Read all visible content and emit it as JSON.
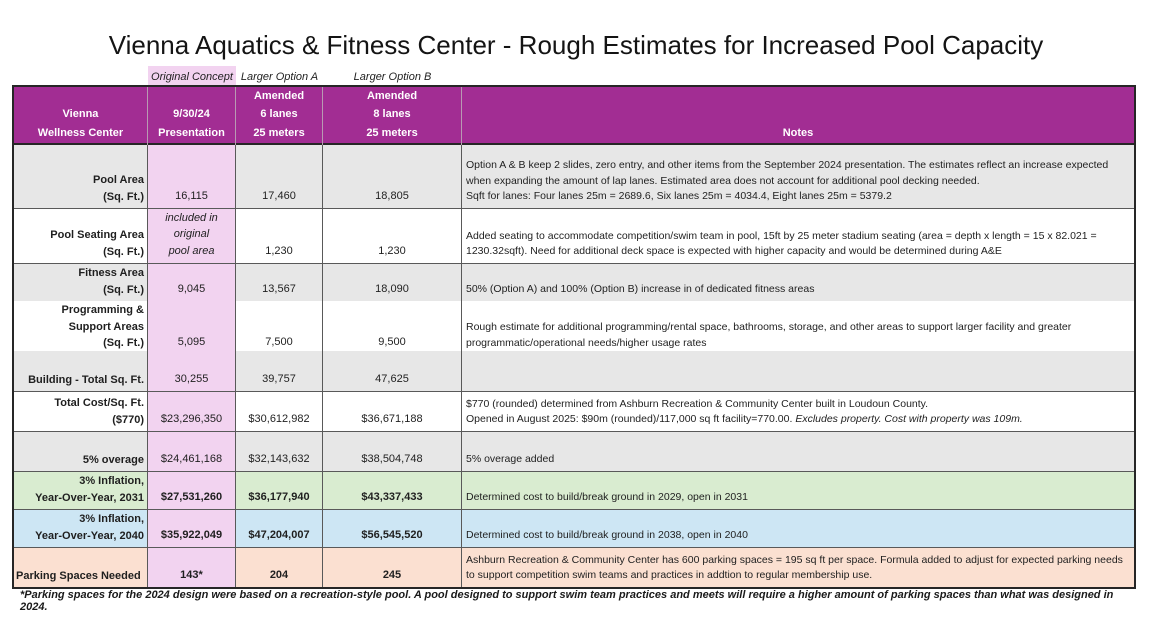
{
  "title": "Vienna Aquatics & Fitness Center - Rough Estimates for Increased Pool Capacity",
  "mini_headers": [
    "Original Concept",
    "Larger Option A",
    "Larger Option B"
  ],
  "column_headers": [
    "Vienna\nWellness Center",
    "9/30/24\nPresentation",
    "Amended\n6 lanes\n25 meters",
    "Amended\n8 lanes\n25 meters",
    "Notes"
  ],
  "rows": [
    {
      "label": "Pool Area\n(Sq. Ft.)",
      "original": "16,115",
      "option_a": "17,460",
      "option_b": "18,805",
      "note": "Option A & B keep 2 slides, zero entry, and other items from the September 2024 presentation. The estimates reflect an increase expected when expanding the amount of lap lanes. Estimated area does not account for additional pool decking needed.\nSqft for lanes: Four lanes 25m = 2689.6, Six lanes 25m = 4034.4, Eight lanes 25m = 5379.2",
      "style": "gray"
    },
    {
      "label": "Pool Seating Area\n(Sq. Ft.)",
      "original": "included in original\npool area",
      "option_a": "1,230",
      "option_b": "1,230",
      "note": "Added seating to accommodate competition/swim team in pool, 15ft by 25 meter stadium seating (area = depth x length = 15 x 82.021 = 1230.32sqft). Need for additional deck space is expected with higher capacity and would be determined during A&E",
      "style": "white"
    },
    {
      "label": "Fitness Area\n(Sq. Ft.)",
      "original": "9,045",
      "option_a": "13,567",
      "option_b": "18,090",
      "note": "50% (Option A) and 100% (Option B) increase in of dedicated fitness areas",
      "style": "gray"
    },
    {
      "label": "Programming &\nSupport Areas\n(Sq. Ft.)",
      "original": "5,095",
      "option_a": "7,500",
      "option_b": "9,500",
      "note": "Rough estimate for additional programming/rental space, bathrooms, storage, and other areas  to support larger facility and greater programmatic/operational needs/higher usage rates",
      "style": "white"
    },
    {
      "label": "Building - Total Sq. Ft.",
      "original": "30,255",
      "option_a": "39,757",
      "option_b": "47,625",
      "note": "",
      "style": "gray"
    },
    {
      "label": "Total Cost/Sq. Ft.\n($770)",
      "original": "$23,296,350",
      "option_a": "$30,612,982",
      "option_b": "$36,671,188",
      "note": "$770 (rounded) determined from Ashburn Recreation & Community Center built in Loudoun County.\nOpened in August 2025: $90m (rounded)/117,000 sq ft facility=770.00. ",
      "note_italic": "Excludes property. Cost with property was 109m.",
      "style": "white"
    },
    {
      "label": "5% overage",
      "original": "$24,461,168",
      "option_a": "$32,143,632",
      "option_b": "$38,504,748",
      "note": "5% overage added",
      "style": "gray"
    },
    {
      "label": "3% Inflation,\nYear-Over-Year, 2031",
      "original": "$27,531,260",
      "option_a": "$36,177,940",
      "option_b": "$43,337,433",
      "note": "Determined cost to build/break ground in 2029, open in 2031",
      "style": "green"
    },
    {
      "label": "3% Inflation,\nYear-Over-Year, 2040",
      "original": "$35,922,049",
      "option_a": "$47,204,007",
      "option_b": "$56,545,520",
      "note": "Determined cost to build/break ground in 2038, open in 2040",
      "style": "blue"
    },
    {
      "label": "Parking Spaces Needed",
      "original": "143*",
      "option_a": "204",
      "option_b": "245",
      "note": "Ashburn Recreation & Community Center has 600 parking spaces = 195 sq ft per space. Formula added to adjust for expected parking needs to support competition swim teams and practices in addtion to regular membership use.",
      "style": "peach"
    }
  ],
  "footnote": "*Parking spaces for the 2024 design were based on a recreation-style pool. A pool designed to support swim team practices and meets will require a higher amount of parking spaces than what was designed in 2024.",
  "colors": {
    "header_purple": "#A22D93",
    "pink_column": "#F2D3F0",
    "gray_row": "#E7E7E7",
    "green_row": "#D9ECD0",
    "blue_row": "#CDE6F4",
    "peach_row": "#FBE0D1"
  }
}
